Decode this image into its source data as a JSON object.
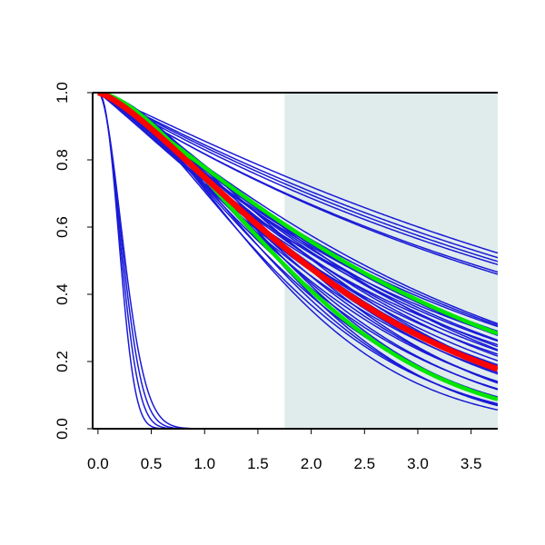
{
  "chart_data": {
    "type": "line",
    "title": "",
    "xlabel": "",
    "ylabel": "",
    "xlim": [
      -0.05,
      3.75
    ],
    "ylim": [
      0.0,
      1.0
    ],
    "grid": false,
    "legend": "none",
    "x_ticks": [
      "0.0",
      "0.5",
      "1.0",
      "1.5",
      "2.0",
      "2.5",
      "3.0",
      "3.5"
    ],
    "x_tick_values": [
      0.0,
      0.5,
      1.0,
      1.5,
      2.0,
      2.5,
      3.0,
      3.5
    ],
    "y_ticks": [
      "0.0",
      "0.2",
      "0.4",
      "0.6",
      "0.8",
      "1.0"
    ],
    "y_tick_values": [
      0.0,
      0.2,
      0.4,
      0.6,
      0.8,
      1.0
    ],
    "shaded_region": {
      "x_start": 1.75,
      "x_end": 3.75,
      "color": "#e0ecec"
    },
    "colors": {
      "blue": "#1a1ad6",
      "green": "#00e600",
      "red": "#ff0000",
      "axis": "#000000"
    },
    "curve_model": "y = exp(-(x/scale)^shape)",
    "series": [
      {
        "color": "blue",
        "width": 1.5,
        "params": [
          [
            0.25,
            2.3
          ],
          [
            0.27,
            2.1
          ],
          [
            0.29,
            2.0
          ],
          [
            0.31,
            1.9
          ]
        ]
      },
      {
        "color": "blue",
        "width": 1.5,
        "params": [
          [
            5.2,
            1.02
          ],
          [
            5.3,
            1.04
          ],
          [
            5.45,
            1.05
          ],
          [
            5.6,
            1.08
          ],
          [
            4.8,
            1.02
          ],
          [
            4.9,
            1.01
          ]
        ]
      },
      {
        "color": "blue",
        "width": 1.5,
        "params": [
          [
            3.2,
            1.1
          ],
          [
            3.25,
            1.14
          ],
          [
            3.3,
            1.18
          ],
          [
            3.1,
            1.12
          ],
          [
            3.0,
            1.08
          ],
          [
            2.95,
            1.2
          ],
          [
            2.9,
            1.15
          ],
          [
            2.85,
            1.25
          ],
          [
            2.8,
            1.12
          ],
          [
            2.75,
            1.22
          ],
          [
            2.7,
            1.3
          ],
          [
            2.65,
            1.18
          ],
          [
            2.6,
            1.28
          ],
          [
            2.55,
            1.35
          ],
          [
            2.5,
            1.25
          ],
          [
            2.45,
            1.4
          ],
          [
            2.4,
            1.3
          ],
          [
            2.35,
            1.45
          ],
          [
            2.3,
            1.38
          ],
          [
            2.25,
            1.5
          ],
          [
            2.2,
            1.42
          ],
          [
            2.15,
            1.55
          ],
          [
            2.1,
            1.48
          ],
          [
            2.05,
            1.6
          ],
          [
            2.0,
            1.52
          ],
          [
            1.95,
            1.62
          ],
          [
            3.05,
            1.2
          ],
          [
            2.85,
            1.35
          ],
          [
            2.6,
            1.45
          ],
          [
            2.4,
            1.55
          ],
          [
            2.2,
            1.65
          ],
          [
            2.1,
            1.7
          ]
        ]
      },
      {
        "color": "green",
        "width": 4.5,
        "params": [
          [
            3.1,
            1.22
          ],
          [
            2.15,
            1.6
          ]
        ]
      },
      {
        "color": "red",
        "width": 6.5,
        "params": [
          [
            2.5,
            1.35
          ]
        ]
      }
    ]
  }
}
